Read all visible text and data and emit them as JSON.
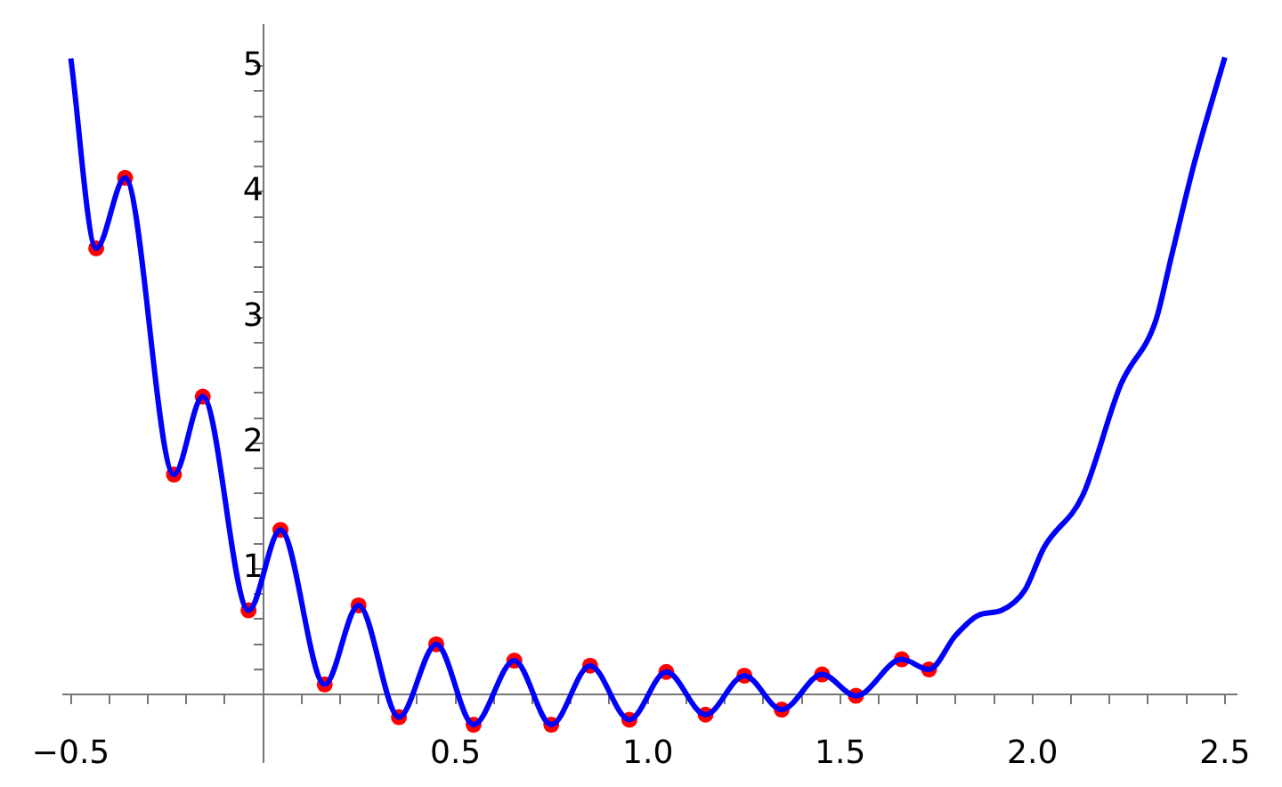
{
  "chart_data": {
    "type": "line",
    "xlim": [
      -0.52,
      2.53
    ],
    "ylim": [
      -0.54,
      5.33
    ],
    "xticks": [
      {
        "value": -0.5,
        "label": "−0.5"
      },
      {
        "value": -0.4,
        "label": null
      },
      {
        "value": -0.3,
        "label": null
      },
      {
        "value": -0.2,
        "label": null
      },
      {
        "value": -0.1,
        "label": null
      },
      {
        "value": 0.1,
        "label": null
      },
      {
        "value": 0.2,
        "label": null
      },
      {
        "value": 0.3,
        "label": null
      },
      {
        "value": 0.4,
        "label": null
      },
      0.5,
      {
        "value": 0.6,
        "label": null
      },
      {
        "value": 0.7,
        "label": null
      },
      {
        "value": 0.8,
        "label": null
      },
      {
        "value": 0.9,
        "label": null
      },
      {
        "value": 1,
        "label": "1.0"
      },
      {
        "value": 1.1,
        "label": null
      },
      {
        "value": 1.2,
        "label": null
      },
      {
        "value": 1.3,
        "label": null
      },
      {
        "value": 1.4,
        "label": null
      },
      1.5,
      {
        "value": 1.6,
        "label": null
      },
      {
        "value": 1.7,
        "label": null
      },
      {
        "value": 1.8,
        "label": null
      },
      {
        "value": 1.9,
        "label": null
      },
      {
        "value": 2,
        "label": "2.0"
      },
      {
        "value": 2.1,
        "label": null
      },
      {
        "value": 2.2,
        "label": null
      },
      {
        "value": 2.3,
        "label": null
      },
      {
        "value": 2.4,
        "label": null
      },
      2.5
    ],
    "yticks": [
      {
        "value": 0.2,
        "label": null
      },
      {
        "value": 0.4,
        "label": null
      },
      {
        "value": 0.6,
        "label": null
      },
      {
        "value": 0.8,
        "label": null
      },
      1,
      {
        "value": 1.2,
        "label": null
      },
      {
        "value": 1.4,
        "label": null
      },
      {
        "value": 1.6,
        "label": null
      },
      {
        "value": 1.8,
        "label": null
      },
      2,
      {
        "value": 2.2,
        "label": null
      },
      {
        "value": 2.4,
        "label": null
      },
      {
        "value": 2.6,
        "label": null
      },
      {
        "value": 2.8,
        "label": null
      },
      3,
      {
        "value": 3.2,
        "label": null
      },
      {
        "value": 3.4,
        "label": null
      },
      {
        "value": 3.6,
        "label": null
      },
      {
        "value": 3.8,
        "label": null
      },
      4,
      {
        "value": 4.2,
        "label": null
      },
      {
        "value": 4.4,
        "label": null
      },
      {
        "value": 4.6,
        "label": null
      },
      {
        "value": 4.8,
        "label": null
      },
      5
    ],
    "grid": false,
    "legend": false,
    "series": [
      {
        "color": "#0000ff",
        "marker": "none",
        "line_style": "solid",
        "x": [
          -0.5,
          -0.434,
          -0.359,
          -0.232,
          -0.157,
          -0.038,
          0.045,
          0.16,
          0.248,
          0.353,
          0.45,
          0.547,
          0.653,
          0.749,
          0.85,
          0.952,
          1.048,
          1.15,
          1.251,
          1.348,
          1.453,
          1.541,
          1.66,
          1.731,
          1.8,
          1.859,
          1.92,
          1.98,
          2.03,
          2.13,
          2.23,
          2.32,
          2.36,
          2.42,
          2.5
        ],
        "values": [
          5.06,
          3.55,
          4.11,
          1.75,
          2.37,
          0.67,
          1.31,
          0.08,
          0.71,
          -0.18,
          0.4,
          -0.24,
          0.27,
          -0.24,
          0.23,
          -0.2,
          0.18,
          -0.16,
          0.15,
          -0.12,
          0.16,
          -0.01,
          0.28,
          0.2,
          0.47,
          0.63,
          0.67,
          0.83,
          1.17,
          1.58,
          2.47,
          2.97,
          3.47,
          4.22,
          5.07
        ]
      },
      {
        "type": "scatter",
        "color": "#ff0000",
        "marker": "circle",
        "x": [
          -0.434,
          -0.359,
          -0.232,
          -0.157,
          -0.038,
          0.045,
          0.16,
          0.248,
          0.353,
          0.45,
          0.547,
          0.653,
          0.749,
          0.85,
          0.952,
          1.048,
          1.15,
          1.251,
          1.348,
          1.453,
          1.541,
          1.66,
          1.731
        ],
        "values": [
          3.55,
          4.11,
          1.75,
          2.37,
          0.67,
          1.31,
          0.08,
          0.71,
          -0.18,
          0.4,
          -0.24,
          0.27,
          -0.24,
          0.23,
          -0.2,
          0.18,
          -0.16,
          0.15,
          -0.12,
          0.16,
          -0.01,
          0.28,
          0.2
        ]
      }
    ]
  }
}
